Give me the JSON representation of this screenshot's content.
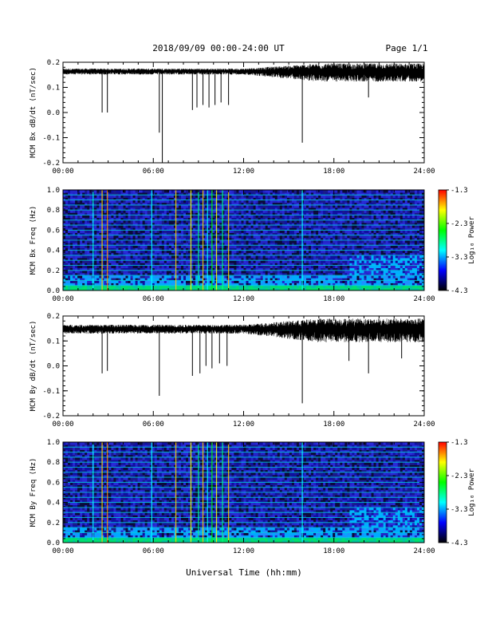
{
  "header": {
    "title": "2018/09/09  00:00-24:00 UT",
    "page": "Page 1/1"
  },
  "x_axis": {
    "ticks": [
      "00:00",
      "06:00",
      "12:00",
      "18:00",
      "24:00"
    ],
    "label": "Universal Time (hh:mm)"
  },
  "colorbar": {
    "label": "Log₁₀ Power",
    "ticks": [
      "-1.3",
      "-2.3",
      "-3.3",
      "-4.3"
    ],
    "colors": [
      "#ff0000",
      "#ffff00",
      "#00ff00",
      "#00ffff",
      "#0000ff",
      "#000000"
    ]
  },
  "chart_data": [
    {
      "type": "line",
      "name": "MCM Bx dB/dt",
      "ylabel": "MCM Bx dB/dt (nT/sec)",
      "ylim": [
        -0.2,
        0.2
      ],
      "xlim_hours": [
        0,
        24
      ],
      "yticks": [
        "0.2",
        "0.1",
        "0.0",
        "-0.1",
        "-0.2"
      ],
      "baseline": 0.165,
      "noise": [
        0.01,
        0.03
      ],
      "dips": [
        {
          "t": 2.6,
          "v": 0.0
        },
        {
          "t": 2.95,
          "v": 0.0
        },
        {
          "t": 6.4,
          "v": -0.08
        },
        {
          "t": 6.6,
          "v": -0.2
        },
        {
          "t": 8.6,
          "v": 0.01
        },
        {
          "t": 8.9,
          "v": 0.02
        },
        {
          "t": 9.3,
          "v": 0.03
        },
        {
          "t": 9.7,
          "v": 0.02
        },
        {
          "t": 10.1,
          "v": 0.03
        },
        {
          "t": 10.5,
          "v": 0.04
        },
        {
          "t": 11.0,
          "v": 0.03
        },
        {
          "t": 15.9,
          "v": -0.12
        },
        {
          "t": 20.3,
          "v": 0.06
        }
      ]
    },
    {
      "type": "heatmap",
      "name": "MCM Bx Freq",
      "ylabel": "MCM Bx Freq (Hz)",
      "ylim": [
        0.0,
        1.0
      ],
      "yticks": [
        "1.0",
        "0.8",
        "0.6",
        "0.4",
        "0.2",
        "0.0"
      ],
      "zlim": [
        -4.3,
        -1.3
      ],
      "events_hours": [
        2.0,
        2.6,
        2.95,
        5.9,
        7.5,
        8.5,
        9.0,
        9.3,
        9.6,
        9.9,
        10.2,
        10.6,
        11.0,
        15.9
      ]
    },
    {
      "type": "line",
      "name": "MCM By dB/dt",
      "ylabel": "MCM By dB/dt (nT/sec)",
      "ylim": [
        -0.2,
        0.2
      ],
      "xlim_hours": [
        0,
        24
      ],
      "yticks": [
        "0.2",
        "0.1",
        "0.0",
        "-0.1",
        "-0.2"
      ],
      "baseline": 0.15,
      "noise": [
        0.015,
        0.04
      ],
      "dips": [
        {
          "t": 2.6,
          "v": -0.03
        },
        {
          "t": 2.95,
          "v": -0.02
        },
        {
          "t": 6.4,
          "v": -0.12
        },
        {
          "t": 8.6,
          "v": -0.04
        },
        {
          "t": 9.1,
          "v": -0.03
        },
        {
          "t": 9.5,
          "v": 0.0
        },
        {
          "t": 9.9,
          "v": -0.01
        },
        {
          "t": 10.4,
          "v": 0.01
        },
        {
          "t": 10.9,
          "v": 0.0
        },
        {
          "t": 15.9,
          "v": -0.15
        },
        {
          "t": 19.0,
          "v": 0.02
        },
        {
          "t": 20.3,
          "v": -0.03
        },
        {
          "t": 22.5,
          "v": 0.03
        }
      ]
    },
    {
      "type": "heatmap",
      "name": "MCM By Freq",
      "ylabel": "MCM By Freq (Hz)",
      "ylim": [
        0.0,
        1.0
      ],
      "yticks": [
        "1.0",
        "0.8",
        "0.6",
        "0.4",
        "0.2",
        "0.0"
      ],
      "zlim": [
        -4.3,
        -1.3
      ],
      "events_hours": [
        2.0,
        2.6,
        2.95,
        5.9,
        7.5,
        8.5,
        9.0,
        9.3,
        9.6,
        9.9,
        10.2,
        10.6,
        11.0,
        15.9
      ]
    }
  ]
}
